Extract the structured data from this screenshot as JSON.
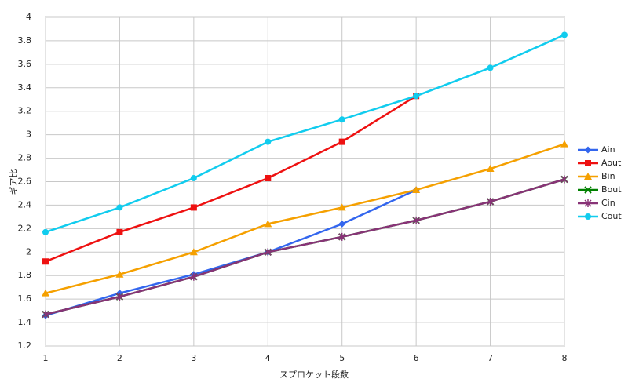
{
  "chart_data": {
    "type": "line",
    "xlabel": "スプロケット段数",
    "ylabel": "ギア比",
    "x": [
      1,
      2,
      3,
      4,
      5,
      6,
      7,
      8
    ],
    "xlim": [
      1,
      8
    ],
    "xticks": [
      1,
      2,
      3,
      4,
      5,
      6,
      7,
      8
    ],
    "ylim": [
      1.2,
      4
    ],
    "yticks": [
      1.2,
      1.4,
      1.6,
      1.8,
      2,
      2.2,
      2.4,
      2.6,
      2.8,
      3,
      3.2,
      3.4,
      3.6,
      3.8,
      4
    ],
    "grid": true,
    "legend": "right",
    "series": [
      {
        "name": "Ain",
        "color": "#3366ee",
        "marker": "diamond",
        "values": [
          1.46,
          1.65,
          1.81,
          2.0,
          2.24,
          2.53,
          null,
          null
        ]
      },
      {
        "name": "Aout",
        "color": "#ee1111",
        "marker": "square",
        "values": [
          1.92,
          2.17,
          2.38,
          2.63,
          2.94,
          3.33,
          null,
          null
        ]
      },
      {
        "name": "Bin",
        "color": "#f5a000",
        "marker": "triangle",
        "values": [
          1.65,
          1.81,
          2.0,
          2.24,
          2.38,
          2.53,
          2.71,
          2.92
        ]
      },
      {
        "name": "Bout",
        "color": "#008000",
        "marker": "x",
        "values": [
          1.47,
          1.62,
          1.79,
          2.0,
          2.13,
          2.27,
          2.43,
          2.62
        ]
      },
      {
        "name": "Cin",
        "color": "#883377",
        "marker": "star",
        "values": [
          1.47,
          1.62,
          1.79,
          2.0,
          2.13,
          2.27,
          2.43,
          2.62
        ]
      },
      {
        "name": "Cout",
        "color": "#11ccee",
        "marker": "circle",
        "values": [
          2.17,
          2.38,
          2.63,
          2.94,
          3.13,
          3.33,
          3.57,
          3.85
        ]
      }
    ]
  }
}
